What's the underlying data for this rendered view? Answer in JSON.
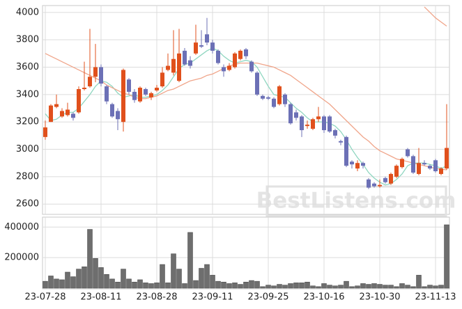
{
  "chart_data": {
    "type": "candlestick",
    "watermark": "BestListens.com",
    "categories": [
      "23-07-28",
      null,
      null,
      null,
      null,
      null,
      null,
      null,
      null,
      null,
      "23-08-11",
      null,
      null,
      null,
      null,
      null,
      null,
      null,
      null,
      null,
      "23-08-28",
      null,
      null,
      null,
      null,
      null,
      null,
      null,
      null,
      null,
      "23-09-11",
      null,
      null,
      null,
      null,
      null,
      null,
      null,
      null,
      null,
      "23-09-25",
      null,
      null,
      null,
      null,
      null,
      null,
      null,
      null,
      null,
      "23-10-16",
      null,
      null,
      null,
      null,
      null,
      null,
      null,
      null,
      null,
      "23-10-30",
      null,
      null,
      null,
      null,
      null,
      null,
      null,
      null,
      null,
      "23-11-13",
      null,
      null
    ],
    "open": [
      3090,
      3200,
      3310,
      3240,
      3250,
      3260,
      3270,
      3440,
      3460,
      3530,
      3600,
      3460,
      3330,
      3280,
      3200,
      3510,
      3420,
      3350,
      3440,
      3380,
      3430,
      3460,
      3580,
      3560,
      3500,
      3720,
      3650,
      3700,
      3760,
      3840,
      3780,
      3720,
      3600,
      3580,
      3600,
      3660,
      3730,
      3640,
      3560,
      3390,
      3380,
      3370,
      3330,
      3400,
      3330,
      3270,
      3240,
      3170,
      3150,
      3220,
      3240,
      3240,
      3140,
      3060,
      3090,
      2910,
      2860,
      2900,
      2780,
      2750,
      2730,
      2790,
      2750,
      2800,
      2870,
      3000,
      2950,
      2820,
      2900,
      2880,
      2920,
      2820,
      2860
    ],
    "high": [
      3210,
      3330,
      3400,
      3300,
      3340,
      3270,
      3460,
      3640,
      3880,
      3770,
      3620,
      3470,
      3340,
      3300,
      3590,
      3520,
      3440,
      3460,
      3450,
      3420,
      3470,
      3600,
      3700,
      3870,
      3880,
      3740,
      3680,
      3910,
      3870,
      3960,
      3800,
      3730,
      3620,
      3630,
      3710,
      3730,
      3740,
      3650,
      3570,
      3400,
      3390,
      3380,
      3470,
      3410,
      3340,
      3290,
      3250,
      3210,
      3230,
      3310,
      3250,
      3250,
      3150,
      3070,
      3100,
      2920,
      2920,
      2910,
      2790,
      2760,
      2780,
      2800,
      2830,
      2890,
      2940,
      3010,
      2960,
      3010,
      2920,
      2890,
      2930,
      2870,
      3330
    ],
    "low": [
      3070,
      3200,
      3300,
      3230,
      3240,
      3210,
      3260,
      3430,
      3450,
      3490,
      3460,
      3330,
      3230,
      3140,
      3130,
      3400,
      3340,
      3340,
      3390,
      3360,
      3420,
      3450,
      3570,
      3540,
      3490,
      3610,
      3590,
      3690,
      3740,
      3760,
      3700,
      3620,
      3530,
      3570,
      3590,
      3650,
      3660,
      3560,
      3390,
      3360,
      3360,
      3300,
      3320,
      3310,
      3180,
      3210,
      3090,
      3150,
      3140,
      3200,
      3120,
      3120,
      3080,
      3030,
      2870,
      2860,
      2840,
      2860,
      2710,
      2720,
      2720,
      2750,
      2740,
      2790,
      2860,
      2940,
      2820,
      2810,
      2880,
      2850,
      2830,
      2810,
      2850
    ],
    "close": [
      3160,
      3320,
      3330,
      3280,
      3290,
      3230,
      3440,
      3450,
      3530,
      3600,
      3480,
      3350,
      3240,
      3220,
      3580,
      3420,
      3360,
      3450,
      3400,
      3410,
      3450,
      3560,
      3610,
      3660,
      3700,
      3620,
      3610,
      3780,
      3750,
      3780,
      3720,
      3630,
      3570,
      3610,
      3700,
      3720,
      3680,
      3570,
      3400,
      3370,
      3370,
      3310,
      3460,
      3330,
      3190,
      3230,
      3140,
      3180,
      3220,
      3240,
      3140,
      3130,
      3100,
      3050,
      2880,
      2890,
      2900,
      2880,
      2720,
      2730,
      2740,
      2760,
      2820,
      2880,
      2930,
      2950,
      2830,
      2900,
      2890,
      2860,
      2840,
      2860,
      3010
    ],
    "up_color": "#e0501c",
    "down_color": "#6c70b6",
    "ylim": [
      2525,
      4050
    ],
    "yticks": [
      2600,
      2800,
      3000,
      3200,
      3400,
      3600,
      3800,
      4000
    ],
    "grid": true,
    "lines": [
      {
        "color": "#8fd6c0",
        "values": [
          3260,
          3210,
          3220,
          3250,
          3270,
          3270,
          3300,
          3350,
          3400,
          3460,
          3500,
          3490,
          3460,
          3410,
          3380,
          3390,
          3400,
          3380,
          3380,
          3390,
          3400,
          3430,
          3470,
          3530,
          3590,
          3620,
          3630,
          3660,
          3690,
          3720,
          3740,
          3720,
          3680,
          3650,
          3630,
          3640,
          3650,
          3640,
          3600,
          3530,
          3460,
          3400,
          3390,
          3380,
          3340,
          3300,
          3270,
          3230,
          3200,
          3200,
          3200,
          3190,
          3170,
          3130,
          3070,
          3000,
          2940,
          2890,
          2830,
          2790,
          2760,
          2740,
          2750,
          2780,
          2820,
          2880,
          2900,
          2900,
          2900,
          2890,
          2880,
          2860,
          2880
        ]
      },
      {
        "color": "#f0a58a",
        "values": [
          3700,
          3680,
          3660,
          3640,
          3620,
          3600,
          3580,
          3560,
          3540,
          3520,
          3500,
          3470,
          3450,
          3430,
          3410,
          3400,
          3380,
          3370,
          3370,
          3380,
          3390,
          3410,
          3430,
          3440,
          3460,
          3480,
          3500,
          3510,
          3520,
          3540,
          3550,
          3570,
          3590,
          3610,
          3620,
          3630,
          3630,
          3630,
          3630,
          3620,
          3610,
          3600,
          3580,
          3560,
          3540,
          3510,
          3480,
          3450,
          3420,
          3390,
          3360,
          3330,
          3290,
          3250,
          3210,
          3170,
          3130,
          3090,
          3060,
          3020,
          2990,
          2970,
          2950,
          2930,
          2920,
          2910,
          2900,
          2890,
          2880,
          2870,
          2860,
          2855,
          2850
        ]
      },
      {
        "color": "#f0a58a",
        "values": [
          null,
          null,
          null,
          null,
          null,
          null,
          null,
          null,
          null,
          null,
          null,
          null,
          null,
          null,
          null,
          null,
          null,
          null,
          null,
          null,
          null,
          null,
          null,
          null,
          null,
          null,
          null,
          null,
          null,
          null,
          null,
          null,
          null,
          null,
          null,
          null,
          null,
          null,
          null,
          null,
          null,
          null,
          null,
          null,
          null,
          null,
          null,
          null,
          null,
          null,
          null,
          null,
          null,
          null,
          null,
          null,
          null,
          null,
          null,
          null,
          null,
          null,
          null,
          null,
          null,
          null,
          null,
          null,
          4040,
          4000,
          3960,
          3930,
          3900
        ]
      }
    ],
    "volume": {
      "color": "#6e6e6e",
      "values": [
        45000,
        80000,
        60000,
        55000,
        105000,
        75000,
        125000,
        140000,
        385000,
        195000,
        135000,
        90000,
        60000,
        40000,
        125000,
        60000,
        40000,
        55000,
        35000,
        30000,
        35000,
        155000,
        35000,
        225000,
        125000,
        30000,
        365000,
        50000,
        130000,
        155000,
        85000,
        45000,
        40000,
        30000,
        35000,
        25000,
        40000,
        50000,
        45000,
        10000,
        20000,
        15000,
        25000,
        20000,
        30000,
        35000,
        35000,
        40000,
        15000,
        10000,
        30000,
        20000,
        15000,
        20000,
        45000,
        10000,
        15000,
        30000,
        25000,
        30000,
        25000,
        20000,
        20000,
        10000,
        30000,
        20000,
        10000,
        85000,
        10000,
        20000,
        15000,
        20000,
        415000
      ],
      "ylim": [
        0,
        465000
      ],
      "yticks": [
        200000,
        400000
      ]
    }
  }
}
